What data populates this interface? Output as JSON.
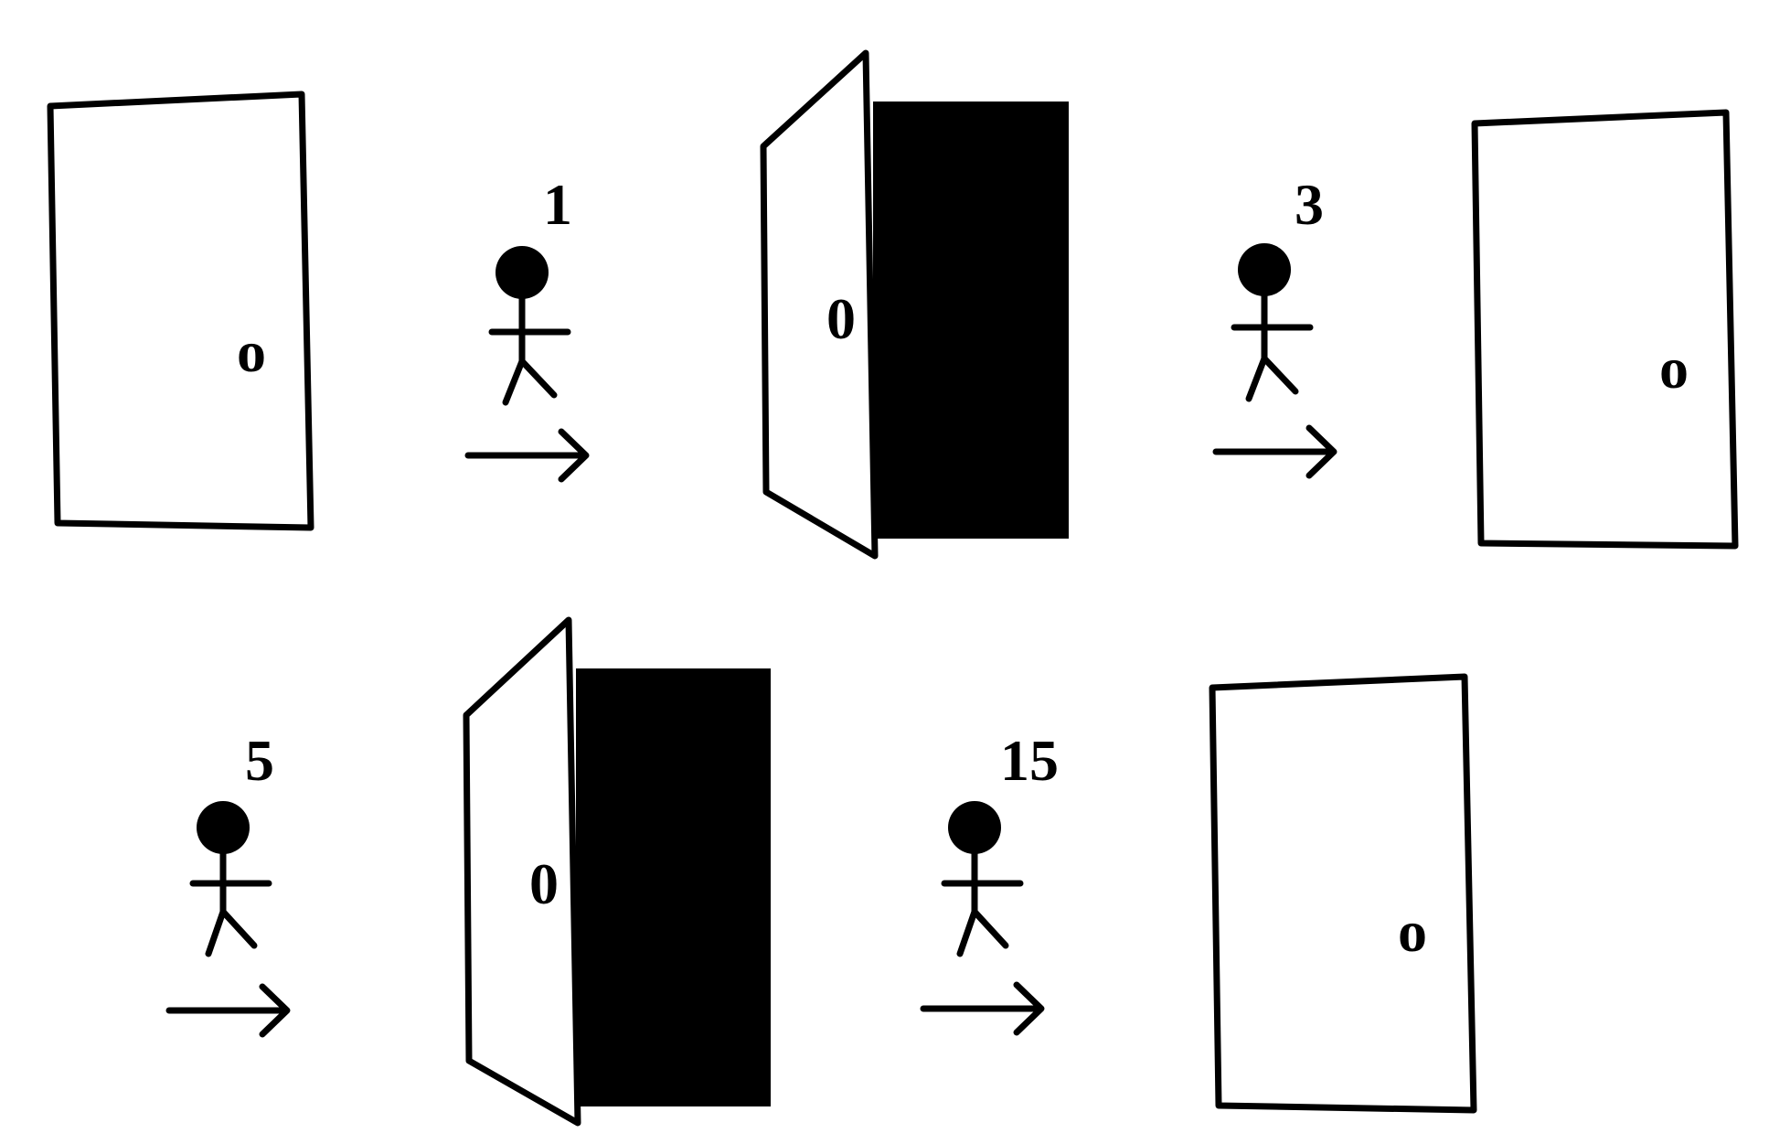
{
  "diagram": {
    "colors": {
      "ink": "#000000",
      "background": "#ffffff"
    },
    "sequence": [
      {
        "kind": "door",
        "state": "closed",
        "knob": "o"
      },
      {
        "kind": "person-step",
        "label": "1"
      },
      {
        "kind": "door",
        "state": "open",
        "knob": "0"
      },
      {
        "kind": "person-step",
        "label": "3"
      },
      {
        "kind": "door",
        "state": "closed",
        "knob": "o"
      },
      {
        "kind": "person-step",
        "label": "5"
      },
      {
        "kind": "door",
        "state": "open",
        "knob": "0"
      },
      {
        "kind": "person-step",
        "label": "15"
      },
      {
        "kind": "door",
        "state": "closed",
        "knob": "o"
      }
    ]
  }
}
